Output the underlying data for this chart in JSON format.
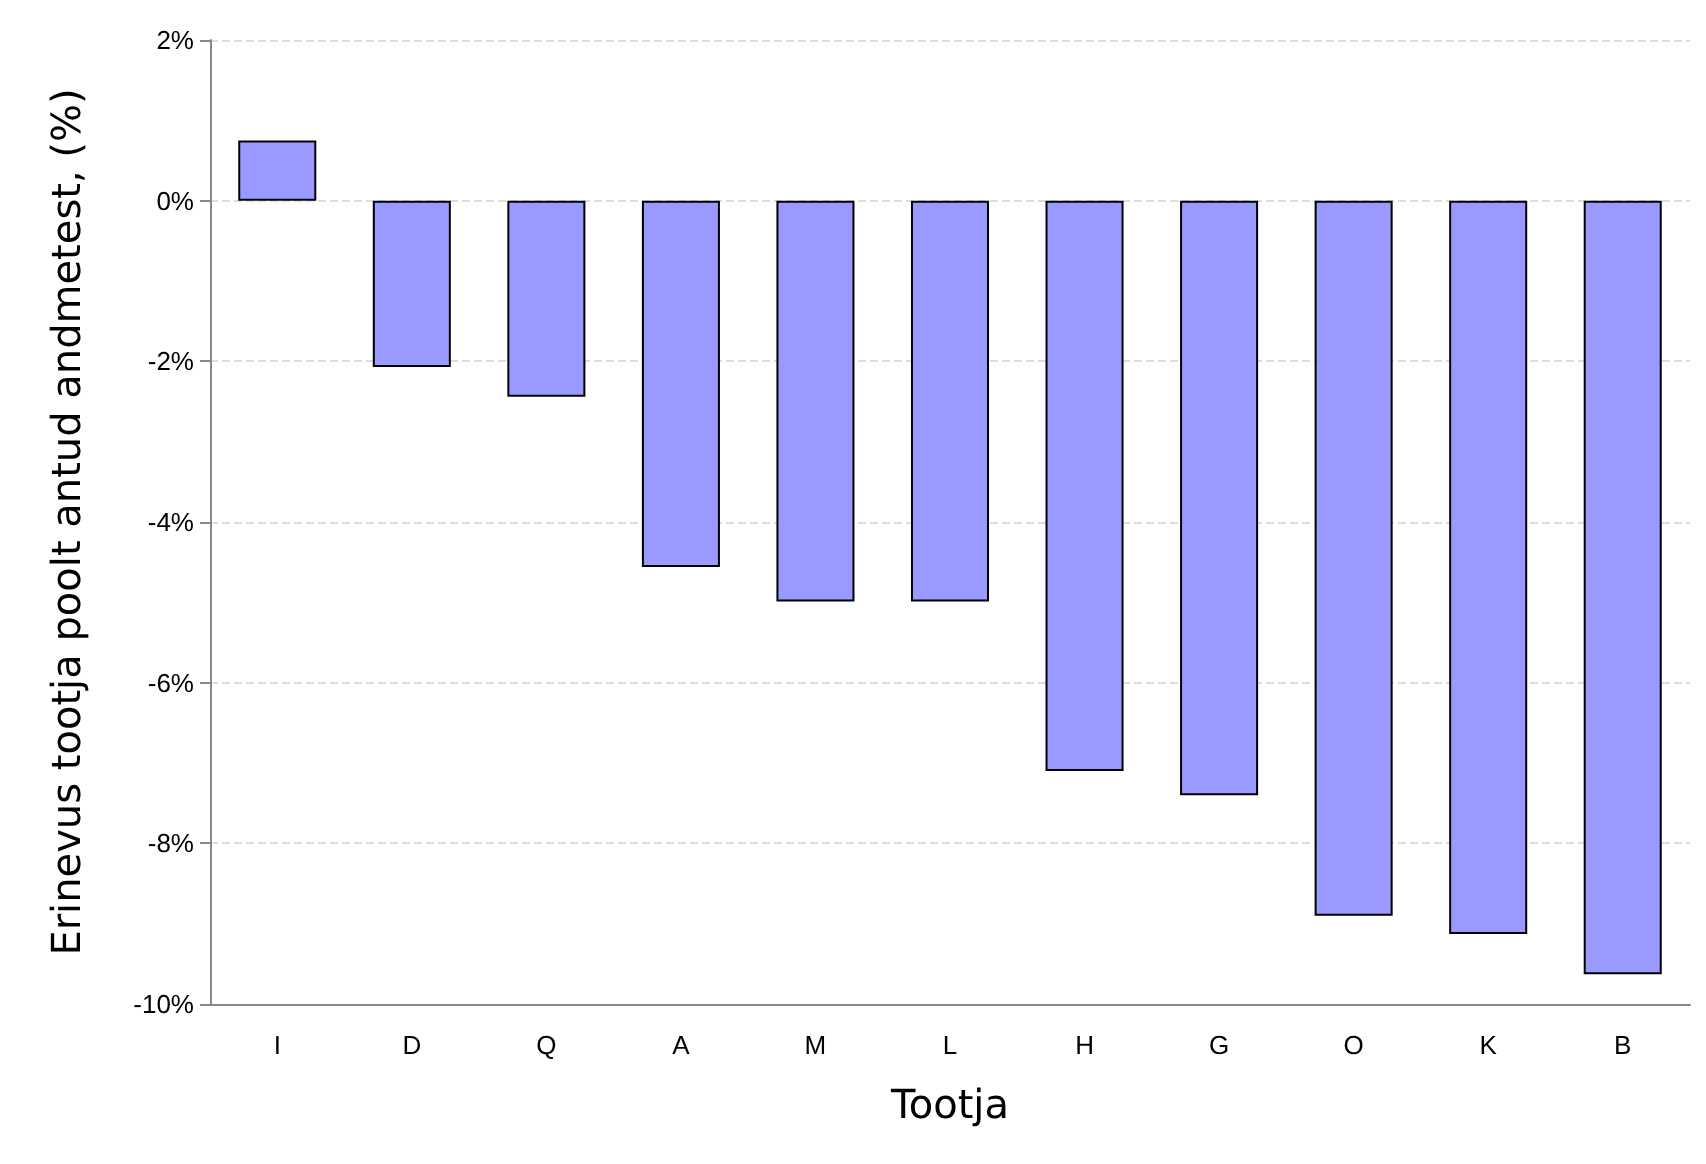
{
  "chart_data": {
    "type": "bar",
    "xlabel": "Tootja",
    "ylabel": "Erinevus tootja poolt antud andmetest, (%)",
    "categories": [
      "I",
      "D",
      "Q",
      "A",
      "M",
      "L",
      "H",
      "G",
      "O",
      "K",
      "B"
    ],
    "values": [
      0.75,
      -2.07,
      -2.44,
      -4.56,
      -4.99,
      -4.99,
      -7.1,
      -7.4,
      -8.9,
      -9.13,
      -9.63
    ],
    "color": "#9999ff",
    "ylim": [
      -10,
      2
    ],
    "yticks": [
      {
        "value": -10,
        "label": "-10%"
      },
      {
        "value": -8,
        "label": "-8%"
      },
      {
        "value": -6,
        "label": "-6%"
      },
      {
        "value": -4,
        "label": "-4%"
      },
      {
        "value": -2,
        "label": "-2%"
      },
      {
        "value": 0,
        "label": "0%"
      },
      {
        "value": 2,
        "label": "2%"
      }
    ],
    "grid": "y"
  }
}
